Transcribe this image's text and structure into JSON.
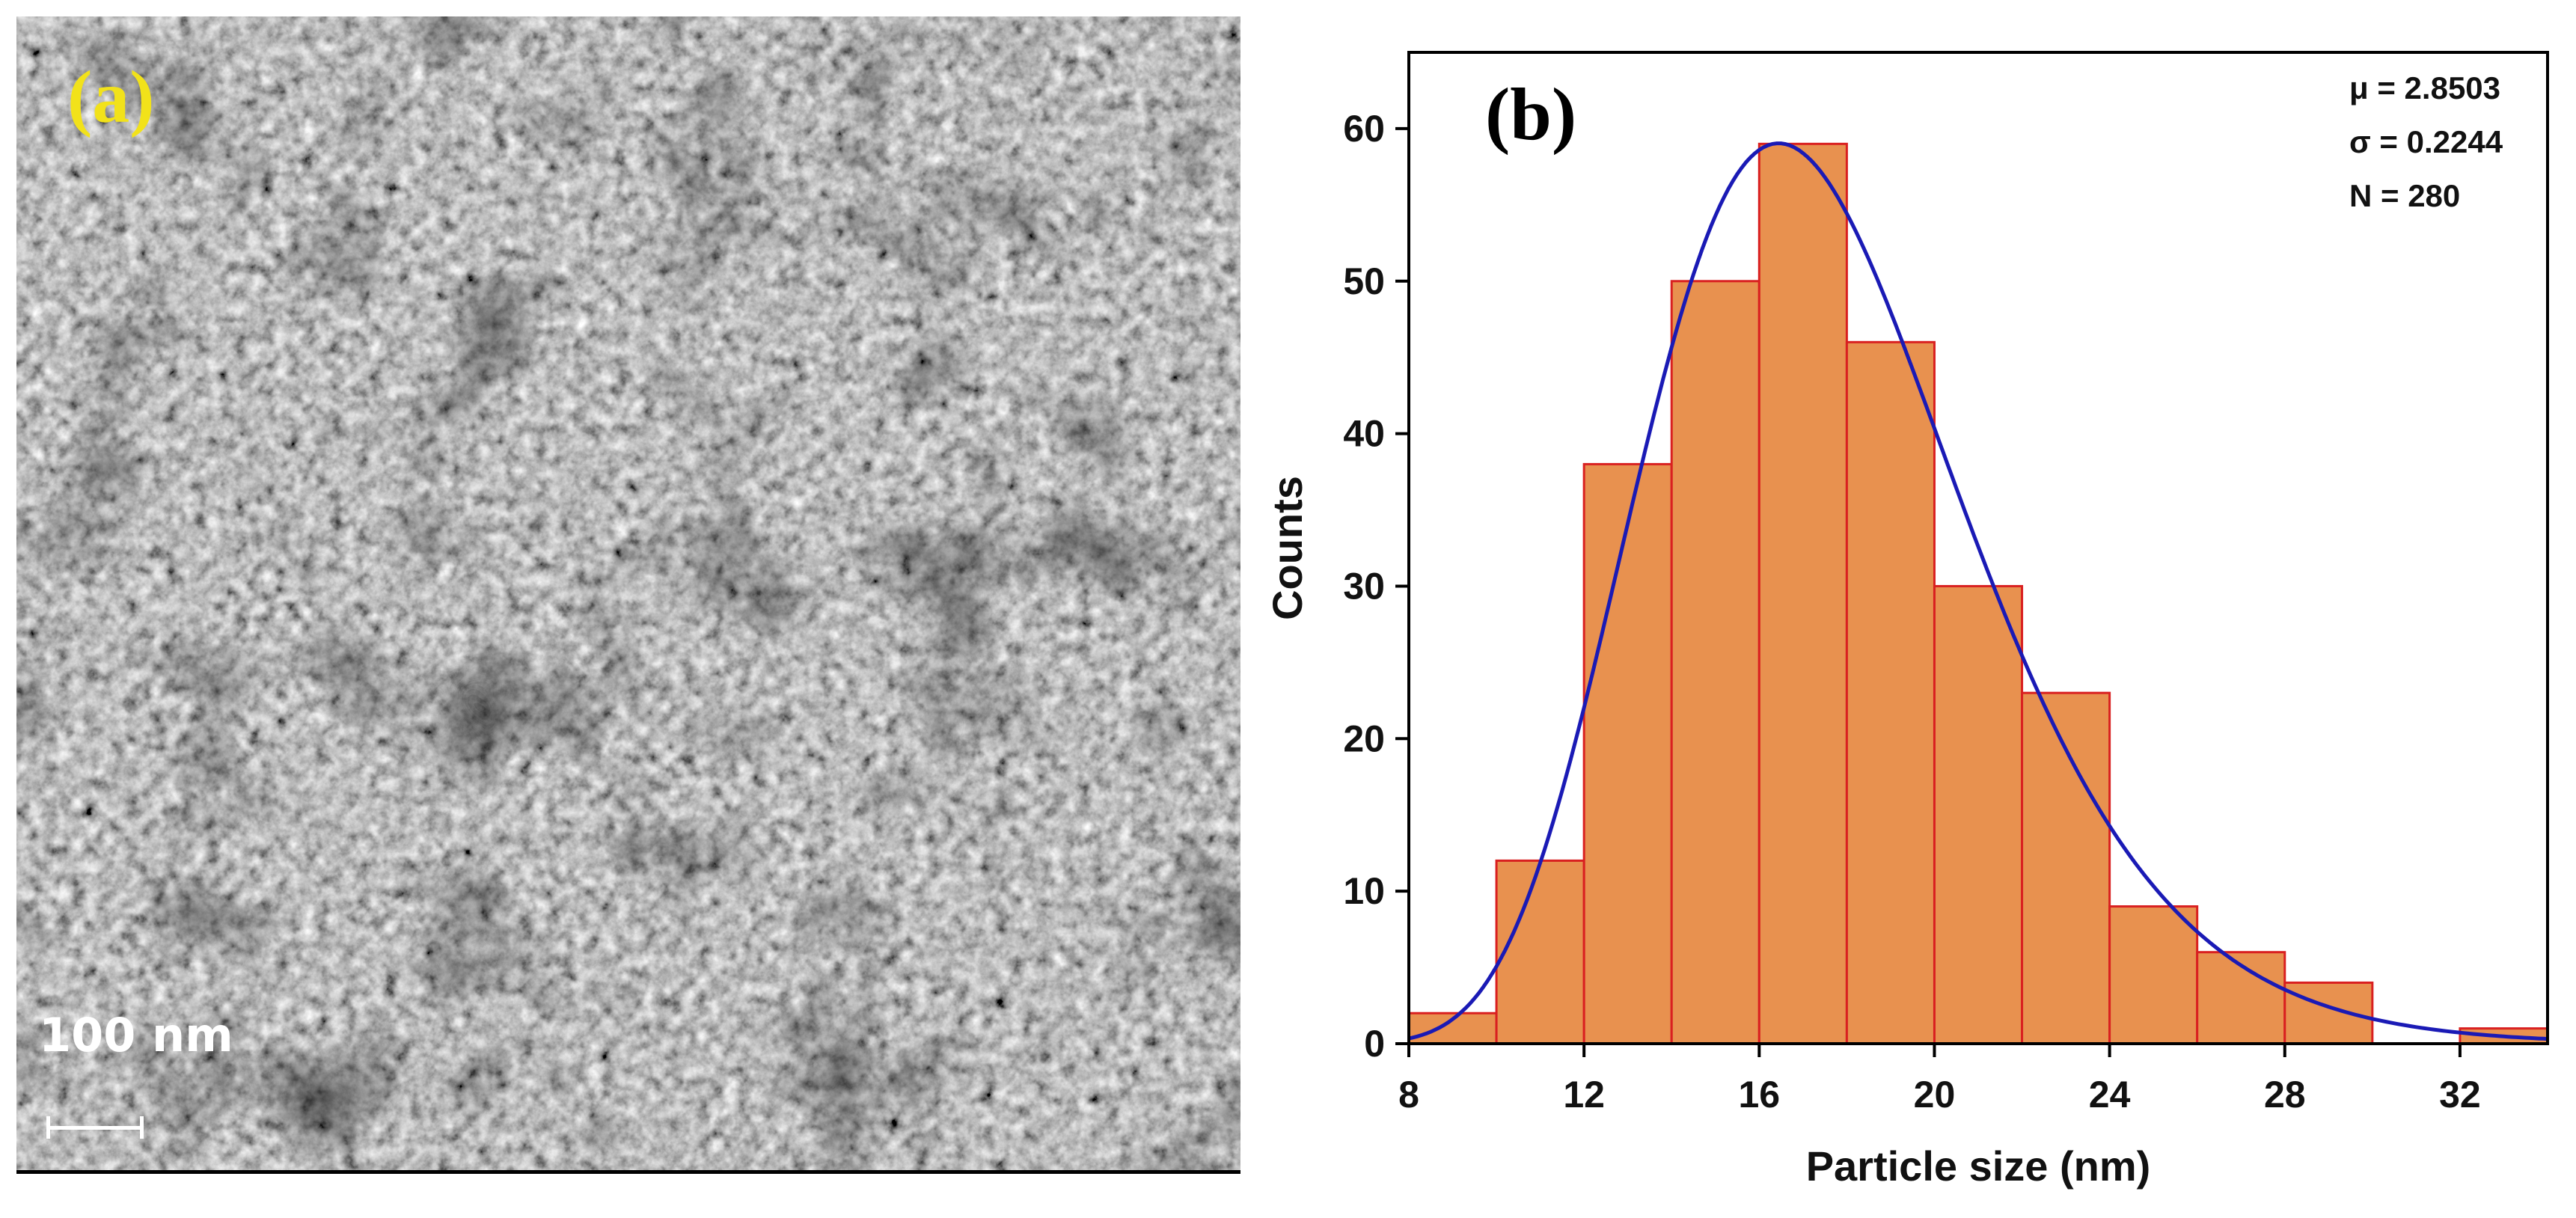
{
  "panel_a": {
    "label": "(a)",
    "scale_bar_text": "100 nm"
  },
  "panel_b": {
    "label": "(b)",
    "stats": [
      "μ = 2.8503",
      "σ = 0.2244",
      "N = 280"
    ]
  },
  "chart_data": {
    "type": "bar",
    "xlabel": "Particle size (nm)",
    "ylabel": "Counts",
    "xlim": [
      8,
      34
    ],
    "ylim": [
      0,
      65
    ],
    "xticks": [
      8,
      12,
      16,
      20,
      24,
      28,
      32
    ],
    "yticks": [
      0,
      10,
      20,
      30,
      40,
      50,
      60
    ],
    "bin_width": 2,
    "bins": [
      8,
      10,
      12,
      14,
      16,
      18,
      20,
      22,
      24,
      26,
      28,
      32
    ],
    "values": [
      2,
      12,
      38,
      50,
      59,
      46,
      30,
      23,
      9,
      6,
      4,
      1
    ],
    "fit": {
      "type": "lognormal",
      "mu": 2.8503,
      "sigma": 0.2244,
      "n": 280
    },
    "colors": {
      "bar_fill": "#e8914f",
      "bar_edge": "#d92020",
      "fit_line": "#1a1ab5"
    }
  }
}
